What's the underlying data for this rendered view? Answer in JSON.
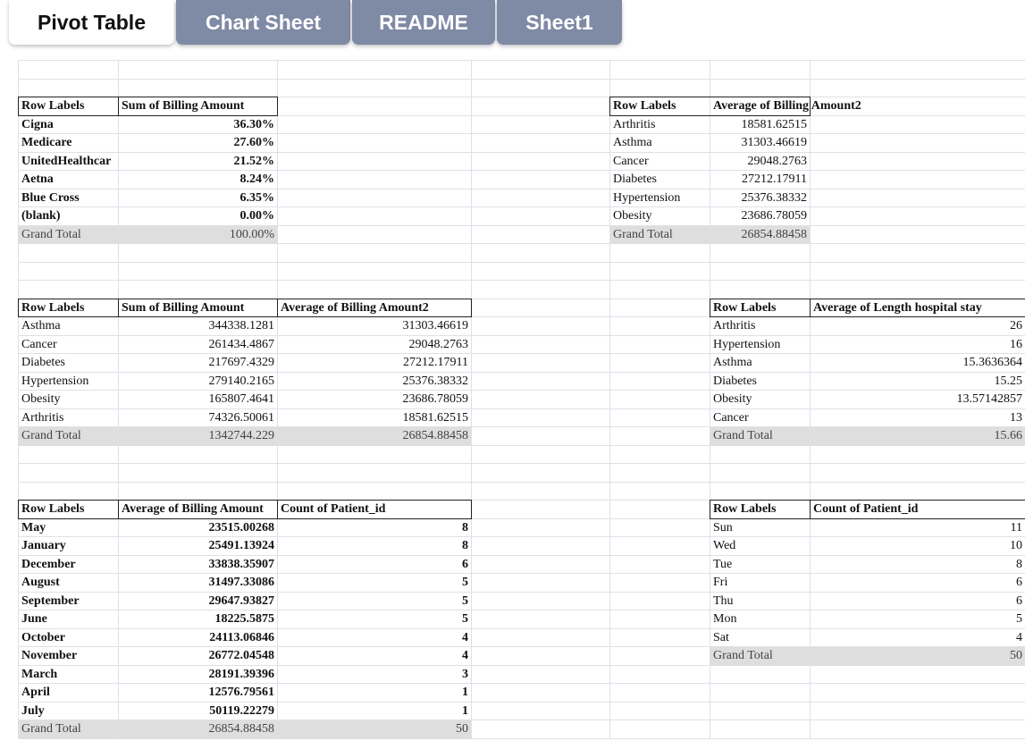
{
  "tabs": [
    {
      "label": "Pivot Table",
      "active": true
    },
    {
      "label": "Chart Sheet",
      "active": false
    },
    {
      "label": "README",
      "active": false
    },
    {
      "label": "Sheet1",
      "active": false
    }
  ],
  "pivots": {
    "p1": {
      "headers": [
        "Row Labels",
        "Sum of Billing Amount"
      ],
      "rows": [
        [
          "Cigna",
          "36.30%"
        ],
        [
          "Medicare",
          "27.60%"
        ],
        [
          "UnitedHealthcar",
          "21.52%"
        ],
        [
          "Aetna",
          "8.24%"
        ],
        [
          "Blue Cross",
          "6.35%"
        ],
        [
          "(blank)",
          "0.00%"
        ]
      ],
      "total": [
        "Grand Total",
        "100.00%"
      ]
    },
    "p2": {
      "headers": [
        "Row Labels",
        "Average of Billing Amount2"
      ],
      "rows": [
        [
          "Arthritis",
          "18581.62515"
        ],
        [
          "Asthma",
          "31303.46619"
        ],
        [
          "Cancer",
          "29048.2763"
        ],
        [
          "Diabetes",
          "27212.17911"
        ],
        [
          "Hypertension",
          "25376.38332"
        ],
        [
          "Obesity",
          "23686.78059"
        ]
      ],
      "total": [
        "Grand Total",
        "26854.88458"
      ]
    },
    "p3": {
      "headers": [
        "Row Labels",
        "Sum of Billing Amount",
        "Average of Billing Amount2"
      ],
      "rows": [
        [
          "Asthma",
          "344338.1281",
          "31303.46619"
        ],
        [
          "Cancer",
          "261434.4867",
          "29048.2763"
        ],
        [
          "Diabetes",
          "217697.4329",
          "27212.17911"
        ],
        [
          "Hypertension",
          "279140.2165",
          "25376.38332"
        ],
        [
          "Obesity",
          "165807.4641",
          "23686.78059"
        ],
        [
          "Arthritis",
          "74326.50061",
          "18581.62515"
        ]
      ],
      "total": [
        "Grand Total",
        "1342744.229",
        "26854.88458"
      ]
    },
    "p4": {
      "headers": [
        "Row Labels",
        "Average of Length hospital stay"
      ],
      "rows": [
        [
          "Arthritis",
          "26"
        ],
        [
          "Hypertension",
          "16"
        ],
        [
          "Asthma",
          "15.3636364"
        ],
        [
          "Diabetes",
          "15.25"
        ],
        [
          "Obesity",
          "13.57142857"
        ],
        [
          "Cancer",
          "13"
        ]
      ],
      "total": [
        "Grand Total",
        "15.66"
      ]
    },
    "p5": {
      "headers": [
        "Row Labels",
        "Average of Billing Amount",
        "Count of Patient_id"
      ],
      "rows": [
        [
          "May",
          "23515.00268",
          "8"
        ],
        [
          "January",
          "25491.13924",
          "8"
        ],
        [
          "December",
          "33838.35907",
          "6"
        ],
        [
          "August",
          "31497.33086",
          "5"
        ],
        [
          "September",
          "29647.93827",
          "5"
        ],
        [
          "June",
          "18225.5875",
          "5"
        ],
        [
          "October",
          "24113.06846",
          "4"
        ],
        [
          "November",
          "26772.04548",
          "4"
        ],
        [
          "March",
          "28191.39396",
          "3"
        ],
        [
          "April",
          "12576.79561",
          "1"
        ],
        [
          "July",
          "50119.22279",
          "1"
        ]
      ],
      "total": [
        "Grand Total",
        "26854.88458",
        "50"
      ]
    },
    "p6": {
      "headers": [
        "Row Labels",
        "Count of Patient_id"
      ],
      "rows": [
        [
          "Sun",
          "11"
        ],
        [
          "Wed",
          "10"
        ],
        [
          "Tue",
          "8"
        ],
        [
          "Fri",
          "6"
        ],
        [
          "Thu",
          "6"
        ],
        [
          "Mon",
          "5"
        ],
        [
          "Sat",
          "4"
        ]
      ],
      "total": [
        "Grand Total",
        "50"
      ]
    }
  }
}
